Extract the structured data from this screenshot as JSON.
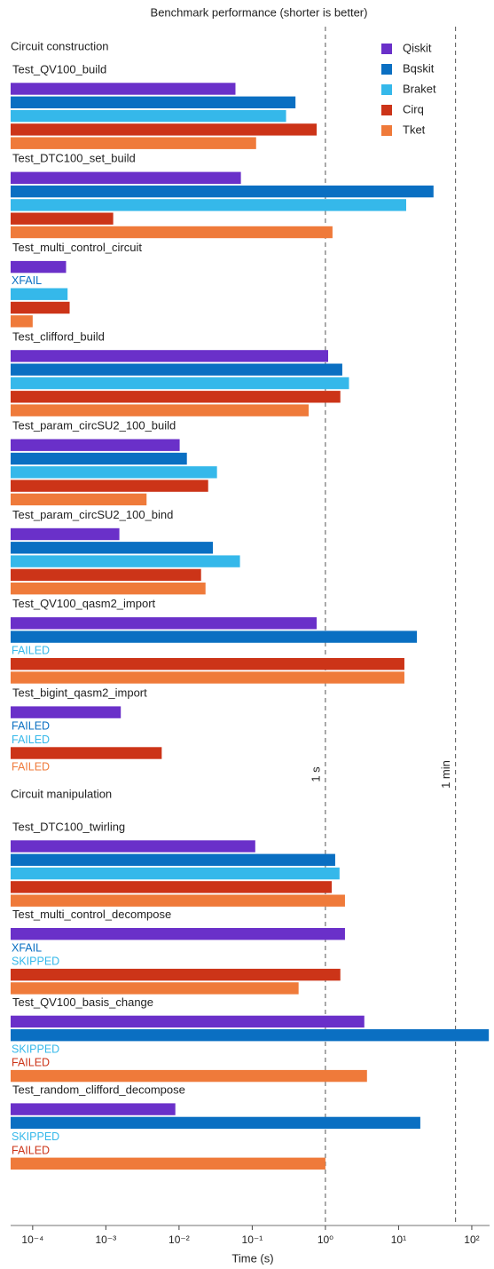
{
  "chart_data": {
    "type": "bar",
    "orientation": "horizontal",
    "title": "Benchmark performance (shorter is better)",
    "xlabel": "Time (s)",
    "xscale": "log",
    "xlim": [
      5e-05,
      175
    ],
    "xticks": [
      {
        "value": 0.0001,
        "label": "10⁻⁴"
      },
      {
        "value": 0.001,
        "label": "10⁻³"
      },
      {
        "value": 0.01,
        "label": "10⁻²"
      },
      {
        "value": 0.1,
        "label": "10⁻¹"
      },
      {
        "value": 1,
        "label": "10⁰"
      },
      {
        "value": 10,
        "label": "10¹"
      },
      {
        "value": 100,
        "label": "10²"
      }
    ],
    "reference_lines": [
      {
        "value": 1,
        "label": "1 s"
      },
      {
        "value": 60,
        "label": "1 min"
      }
    ],
    "legend": "upper right",
    "sections": [
      {
        "title": "Circuit construction",
        "categories": [
          "Test_QV100_build",
          "Test_DTC100_set_build",
          "Test_multi_control_circuit",
          "Test_clifford_build",
          "Test_param_circSU2_100_build",
          "Test_param_circSU2_100_bind",
          "Test_QV100_qasm2_import",
          "Test_bigint_qasm2_import"
        ]
      },
      {
        "title": "Circuit manipulation",
        "categories": [
          "Test_DTC100_twirling",
          "Test_multi_control_decompose",
          "Test_QV100_basis_change",
          "Test_random_clifford_decompose"
        ]
      }
    ],
    "series": [
      {
        "name": "Qiskit",
        "color": "#6a30c9",
        "values": [
          0.059,
          0.07,
          0.000286,
          1.09,
          0.0102,
          0.00153,
          0.76,
          0.0016,
          0.11,
          1.85,
          3.4,
          0.0089
        ],
        "notes": [
          null,
          null,
          null,
          null,
          null,
          null,
          null,
          null,
          null,
          null,
          null,
          null
        ]
      },
      {
        "name": "Bqskit",
        "color": "#0a6fc2",
        "values": [
          0.39,
          30,
          null,
          1.7,
          0.0128,
          0.029,
          17.8,
          null,
          1.36,
          null,
          171,
          19.8
        ],
        "notes": [
          null,
          null,
          "XFAIL",
          null,
          null,
          null,
          null,
          "FAILED",
          null,
          "XFAIL",
          null,
          null
        ]
      },
      {
        "name": "Braket",
        "color": "#35b8ea",
        "values": [
          0.29,
          12.7,
          0.0003,
          2.1,
          0.033,
          0.068,
          null,
          null,
          1.56,
          null,
          null,
          null
        ],
        "notes": [
          null,
          null,
          null,
          null,
          null,
          null,
          "FAILED",
          "FAILED",
          null,
          "SKIPPED",
          "SKIPPED",
          "SKIPPED"
        ]
      },
      {
        "name": "Cirq",
        "color": "#cc3418",
        "values": [
          0.76,
          0.00126,
          0.00032,
          1.6,
          0.025,
          0.02,
          12,
          0.0058,
          1.22,
          1.6,
          null,
          null
        ],
        "notes": [
          null,
          null,
          null,
          null,
          null,
          null,
          null,
          null,
          null,
          null,
          "FAILED",
          "FAILED"
        ]
      },
      {
        "name": "Tket",
        "color": "#ef7a3a",
        "values": [
          0.113,
          1.25,
          0.0001,
          0.59,
          0.0036,
          0.023,
          12,
          null,
          1.85,
          0.43,
          3.7,
          1.0
        ],
        "notes": [
          null,
          null,
          null,
          null,
          null,
          null,
          null,
          "FAILED",
          null,
          null,
          null,
          null
        ]
      }
    ]
  }
}
